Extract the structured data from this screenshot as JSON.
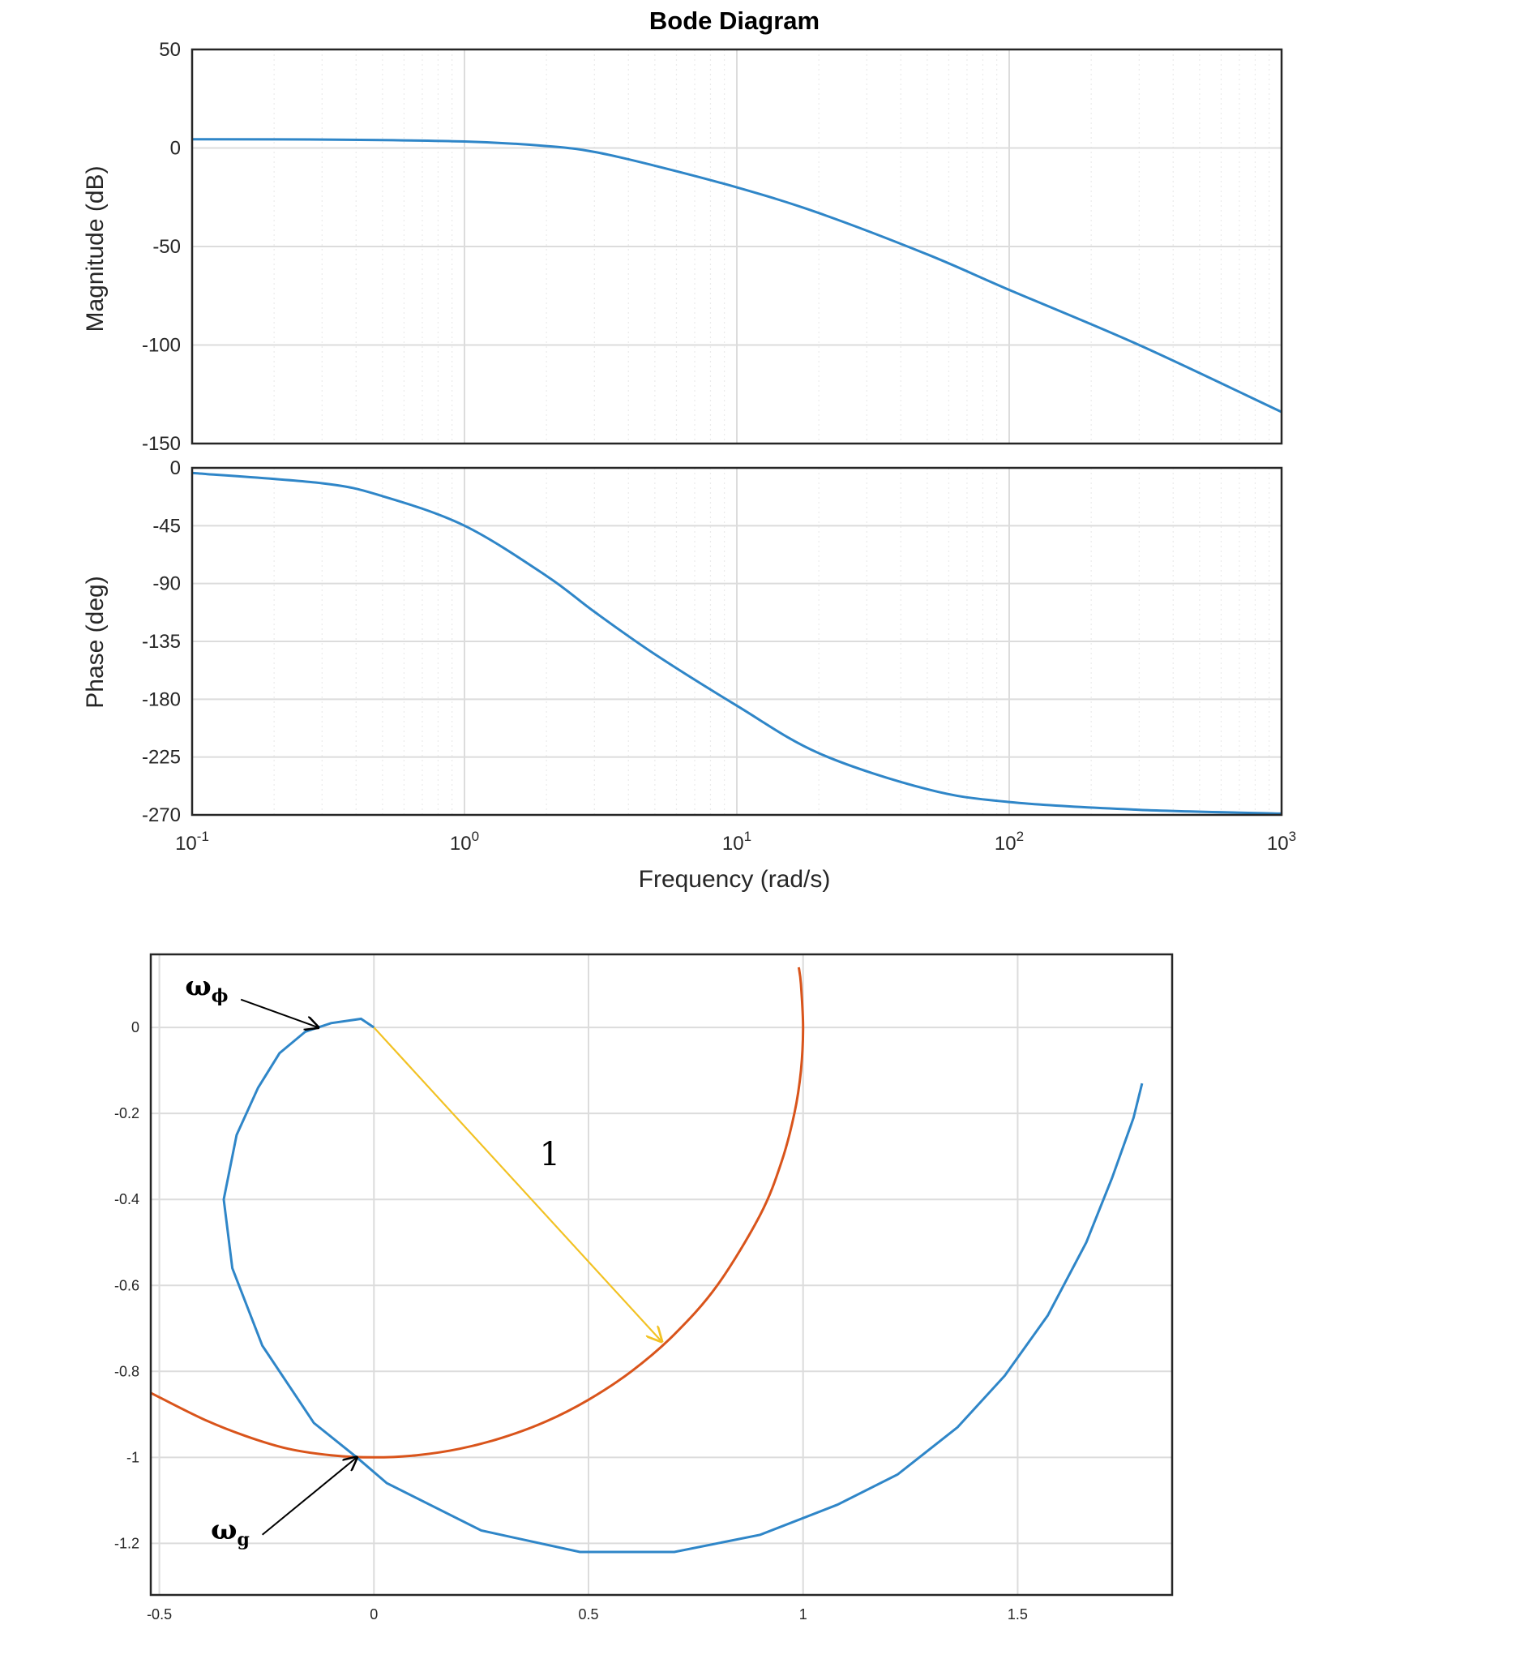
{
  "chart_data": [
    {
      "type": "line",
      "title": "Bode Diagram",
      "subplot": "magnitude",
      "ylabel": "Magnitude (dB)",
      "xlabel": "Frequency  (rad/s)",
      "xscale": "log",
      "xlim": [
        0.1,
        1000
      ],
      "ylim": [
        -150,
        50
      ],
      "yticks": [
        "50",
        "0",
        "-50",
        "-100",
        "-150"
      ],
      "ytick_values": [
        50,
        0,
        -50,
        -100,
        -150
      ],
      "grid": true,
      "series": [
        {
          "color": "#2f86c8",
          "x": [
            0.1,
            0.3,
            1,
            2,
            3,
            5,
            10,
            20,
            50,
            100,
            300,
            1000
          ],
          "y": [
            4.4,
            4.3,
            3.3,
            1.0,
            -2.0,
            -9.0,
            -20.0,
            -33.0,
            -54.0,
            -72.0,
            -100.0,
            -134.0
          ]
        }
      ]
    },
    {
      "type": "line",
      "subplot": "phase",
      "ylabel": "Phase (deg)",
      "xlabel": "Frequency  (rad/s)",
      "xscale": "log",
      "xlim": [
        0.1,
        1000
      ],
      "ylim": [
        -270,
        0
      ],
      "yticks": [
        "0",
        "-45",
        "-90",
        "-135",
        "-180",
        "-225",
        "-270"
      ],
      "ytick_values": [
        0,
        -45,
        -90,
        -135,
        -180,
        -225,
        -270
      ],
      "xticks": [
        {
          "base": "10",
          "exp": "-1",
          "value": 0.1
        },
        {
          "base": "10",
          "exp": "0",
          "value": 1
        },
        {
          "base": "10",
          "exp": "1",
          "value": 10
        },
        {
          "base": "10",
          "exp": "2",
          "value": 100
        },
        {
          "base": "10",
          "exp": "3",
          "value": 1000
        }
      ],
      "grid": true,
      "series": [
        {
          "color": "#2f86c8",
          "x": [
            0.1,
            0.3,
            0.5,
            1,
            2,
            3,
            5,
            10,
            20,
            50,
            100,
            300,
            1000
          ],
          "y": [
            -4,
            -12,
            -22,
            -45,
            -84,
            -112,
            -145,
            -185,
            -222,
            -250,
            -260,
            -266,
            -269
          ]
        }
      ]
    },
    {
      "type": "line",
      "subplot": "nyquist",
      "xlim": [
        -0.52,
        1.86
      ],
      "ylim": [
        -1.32,
        0.17
      ],
      "xticks": [
        "-0.5",
        "0",
        "0.5",
        "1",
        "1.5"
      ],
      "xtick_values": [
        -0.5,
        0,
        0.5,
        1,
        1.5
      ],
      "yticks": [
        "0",
        "-0.2",
        "-0.4",
        "-0.6",
        "-0.8",
        "-1",
        "-1.2"
      ],
      "ytick_values": [
        0,
        -0.2,
        -0.4,
        -0.6,
        -0.8,
        -1,
        -1.2
      ],
      "grid": true,
      "series": [
        {
          "color": "#2f86c8",
          "points": [
            [
              0.0,
              0.0
            ],
            [
              -0.03,
              0.02
            ],
            [
              -0.1,
              0.01
            ],
            [
              -0.16,
              -0.01
            ],
            [
              -0.22,
              -0.06
            ],
            [
              -0.27,
              -0.14
            ],
            [
              -0.32,
              -0.25
            ],
            [
              -0.35,
              -0.4
            ],
            [
              -0.33,
              -0.56
            ],
            [
              -0.26,
              -0.74
            ],
            [
              -0.14,
              -0.92
            ],
            [
              -0.04,
              -1.0
            ],
            [
              0.03,
              -1.06
            ],
            [
              0.25,
              -1.17
            ],
            [
              0.48,
              -1.22
            ],
            [
              0.7,
              -1.22
            ],
            [
              0.9,
              -1.18
            ],
            [
              1.08,
              -1.11
            ],
            [
              1.22,
              -1.04
            ],
            [
              1.36,
              -0.93
            ],
            [
              1.47,
              -0.81
            ],
            [
              1.57,
              -0.67
            ],
            [
              1.66,
              -0.5
            ],
            [
              1.72,
              -0.35
            ],
            [
              1.77,
              -0.21
            ],
            [
              1.79,
              -0.13
            ]
          ]
        },
        {
          "color": "#d9541b",
          "points": [
            [
              -0.52,
              -0.85
            ],
            [
              -0.4,
              -0.91
            ],
            [
              -0.3,
              -0.95
            ],
            [
              -0.2,
              -0.98
            ],
            [
              -0.1,
              -0.995
            ],
            [
              0.0,
              -1.0
            ],
            [
              0.1,
              -0.995
            ],
            [
              0.2,
              -0.98
            ],
            [
              0.3,
              -0.954
            ],
            [
              0.4,
              -0.917
            ],
            [
              0.5,
              -0.866
            ],
            [
              0.6,
              -0.8
            ],
            [
              0.7,
              -0.714
            ],
            [
              0.8,
              -0.6
            ],
            [
              0.9,
              -0.436
            ],
            [
              0.95,
              -0.312
            ],
            [
              0.98,
              -0.199
            ],
            [
              0.995,
              -0.1
            ],
            [
              1.0,
              0.0
            ],
            [
              0.995,
              0.1
            ],
            [
              0.99,
              0.14
            ]
          ]
        }
      ],
      "annotations": {
        "omega_phi": {
          "base": "ω",
          "sub": "ϕ",
          "target": [
            -0.13,
            0.0
          ]
        },
        "omega_g": {
          "base": "ω",
          "sub": "g",
          "target": [
            -0.04,
            -1.0
          ]
        },
        "radius_label": "1",
        "radius_arrow": {
          "color": "#f2c224",
          "from": [
            0.0,
            0.0
          ],
          "to": [
            0.67,
            -0.73
          ]
        }
      }
    }
  ]
}
